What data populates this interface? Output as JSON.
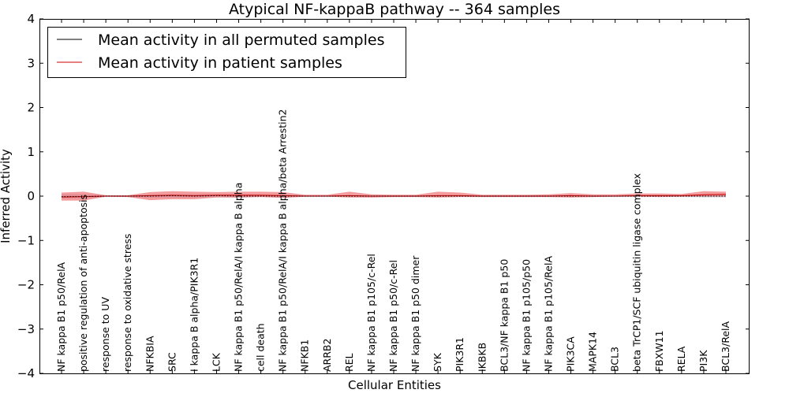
{
  "chart_data": {
    "type": "line",
    "title": "Atypical NF-kappaB pathway -- 364 samples",
    "xlabel": "Cellular Entities",
    "ylabel": "Inferred Activity",
    "ylim": [
      -4,
      4
    ],
    "yticks": [
      {
        "value": 4,
        "label": "4"
      },
      {
        "value": 3,
        "label": "3"
      },
      {
        "value": 2,
        "label": "2"
      },
      {
        "value": 1,
        "label": "1"
      },
      {
        "value": 0,
        "label": "0"
      },
      {
        "value": -1,
        "label": "−1"
      },
      {
        "value": -2,
        "label": "−2"
      },
      {
        "value": -3,
        "label": "−3"
      },
      {
        "value": -4,
        "label": "−4"
      }
    ],
    "grid": false,
    "legend_position": "top-left",
    "categories": [
      "NF kappa B1 p50/RelA",
      "positive regulation of anti-apoptosis",
      "response to UV",
      "response to oxidative stress",
      "NFKBIA",
      "SRC",
      "I kappa B alpha/PIK3R1",
      "LCK",
      "NF kappa B1 p50/RelA/I kappa B alpha",
      "cell death",
      "NF kappa B1 p50/RelA/I kappa B alpha/beta Arrestin2",
      "NFKB1",
      "ARRB2",
      "REL",
      "NF kappa B1 p105/c-Rel",
      "NF kappa B1 p50/c-Rel",
      "NF kappa B1 p50 dimer",
      "SYK",
      "PIK3R1",
      "IKBKB",
      "BCL3/NF kappa B1 p50",
      "NF kappa B1 p105/p50",
      "NF kappa B1 p105/RelA",
      "PIK3CA",
      "MAPK14",
      "BCL3",
      "beta TrCP1/SCF ubiquitin ligase complex",
      "FBXW11",
      "RELA",
      "PI3K",
      "BCL3/RelA"
    ],
    "series": [
      {
        "name": "Mean activity in all permuted samples",
        "color": "#000000",
        "style": "dotted",
        "values": [
          -0.01,
          -0.01,
          0.0,
          0.0,
          0.0,
          0.01,
          0.0,
          0.01,
          0.0,
          0.0,
          0.0,
          0.0,
          0.0,
          0.0,
          0.0,
          0.0,
          0.0,
          0.0,
          0.0,
          0.0,
          0.0,
          0.0,
          0.0,
          0.0,
          0.0,
          0.0,
          0.0,
          0.0,
          0.0,
          0.0,
          0.0
        ],
        "band_lower": [
          -0.05,
          -0.04,
          -0.02,
          -0.02,
          -0.03,
          -0.03,
          -0.03,
          -0.02,
          -0.03,
          -0.02,
          -0.03,
          -0.02,
          -0.02,
          -0.02,
          -0.02,
          -0.02,
          -0.02,
          -0.02,
          -0.02,
          -0.02,
          -0.02,
          -0.02,
          -0.02,
          -0.02,
          -0.02,
          -0.02,
          -0.02,
          -0.02,
          -0.02,
          -0.03,
          -0.03
        ],
        "band_upper": [
          0.04,
          0.04,
          0.02,
          0.02,
          0.03,
          0.04,
          0.04,
          0.04,
          0.04,
          0.03,
          0.03,
          0.02,
          0.02,
          0.02,
          0.02,
          0.02,
          0.02,
          0.02,
          0.02,
          0.02,
          0.02,
          0.02,
          0.02,
          0.02,
          0.02,
          0.02,
          0.02,
          0.02,
          0.02,
          0.03,
          0.03
        ]
      },
      {
        "name": "Mean activity in patient samples",
        "color": "#cc0000",
        "band_color": "#e8383b",
        "values": [
          -0.02,
          -0.01,
          0.0,
          0.0,
          0.01,
          0.02,
          0.01,
          0.02,
          0.02,
          0.02,
          0.01,
          0.0,
          0.0,
          0.01,
          0.0,
          0.0,
          0.0,
          0.01,
          0.01,
          0.0,
          0.0,
          0.0,
          0.0,
          0.01,
          0.0,
          0.0,
          0.01,
          0.01,
          0.01,
          0.03,
          0.04
        ],
        "band_lower": [
          -0.1,
          -0.1,
          -0.01,
          -0.02,
          -0.09,
          -0.07,
          -0.07,
          -0.03,
          -0.03,
          -0.02,
          -0.04,
          -0.01,
          -0.01,
          -0.03,
          -0.03,
          -0.02,
          -0.02,
          -0.03,
          -0.02,
          -0.02,
          -0.02,
          -0.02,
          -0.02,
          -0.03,
          -0.02,
          -0.01,
          -0.01,
          -0.02,
          -0.01,
          -0.01,
          -0.01
        ],
        "band_upper": [
          0.08,
          0.1,
          0.02,
          0.02,
          0.09,
          0.11,
          0.1,
          0.09,
          0.1,
          0.1,
          0.09,
          0.03,
          0.03,
          0.1,
          0.04,
          0.03,
          0.03,
          0.1,
          0.08,
          0.03,
          0.03,
          0.03,
          0.04,
          0.07,
          0.04,
          0.04,
          0.06,
          0.06,
          0.05,
          0.11,
          0.1
        ]
      }
    ]
  }
}
